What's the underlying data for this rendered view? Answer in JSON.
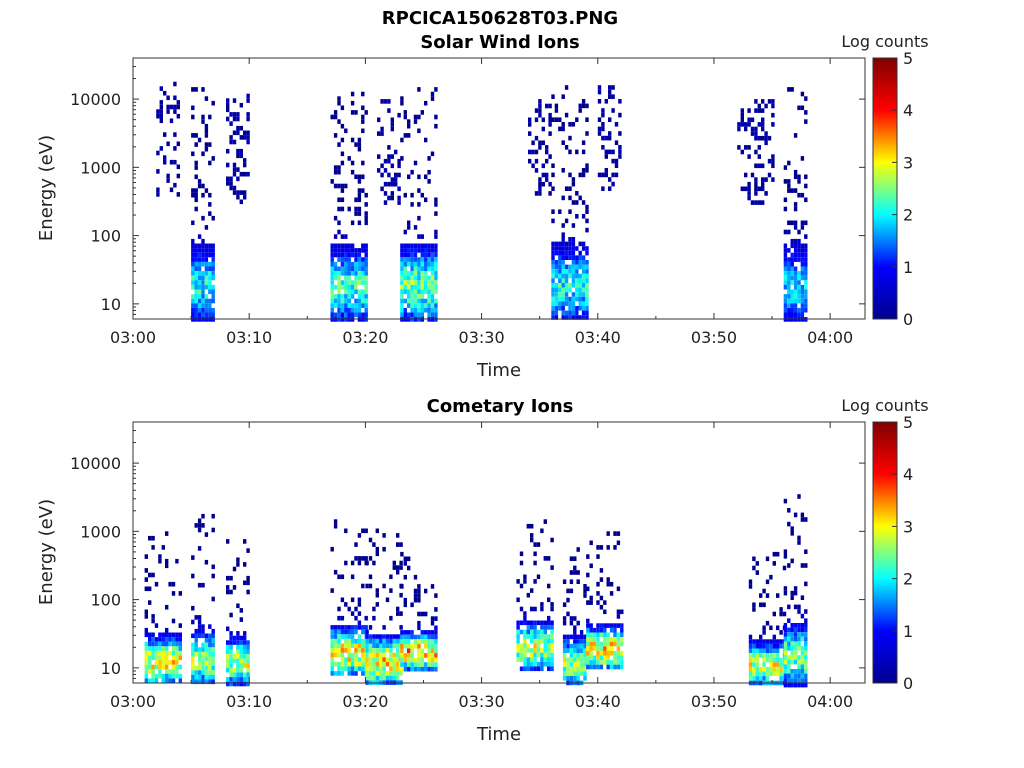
{
  "figure": {
    "title": "RPCICA150628T03.PNG"
  },
  "colormap": {
    "name": "jet",
    "stops": [
      "#00008f",
      "#0000ff",
      "#00ffff",
      "#ffff00",
      "#ff0000",
      "#800000"
    ]
  },
  "chart_data": [
    {
      "type": "heatmap",
      "title": "Solar Wind Ions",
      "xlabel": "Time",
      "ylabel": "Energy (eV)",
      "yscale": "log",
      "ylim": [
        6,
        40000
      ],
      "xlim": [
        "03:00",
        "04:03"
      ],
      "x_ticks": [
        "03:00",
        "03:10",
        "03:20",
        "03:30",
        "03:40",
        "03:50",
        "04:00"
      ],
      "y_ticks": [
        "10",
        "100",
        "1000",
        "10000"
      ],
      "colorbar": {
        "label": "Log counts",
        "min": 0,
        "max": 5,
        "ticks": [
          "0",
          "1",
          "2",
          "3",
          "4",
          "5"
        ]
      },
      "bursts": [
        {
          "t_start": "03:02",
          "t_end": "03:04",
          "e_low": 400,
          "e_high": 18000,
          "peak_log_counts": 0.3
        },
        {
          "t_start": "03:05",
          "t_end": "03:07",
          "e_low": 6,
          "e_high": 15000,
          "peak_log_counts": 2.5
        },
        {
          "t_start": "03:08",
          "t_end": "03:10",
          "e_low": 300,
          "e_high": 12000,
          "peak_log_counts": 0.3
        },
        {
          "t_start": "03:17",
          "t_end": "03:20",
          "e_low": 6,
          "e_high": 15000,
          "peak_log_counts": 2.7
        },
        {
          "t_start": "03:21",
          "t_end": "03:23",
          "e_low": 300,
          "e_high": 10000,
          "peak_log_counts": 0.3
        },
        {
          "t_start": "03:23",
          "t_end": "03:26",
          "e_low": 6,
          "e_high": 15000,
          "peak_log_counts": 3.0
        },
        {
          "t_start": "03:34",
          "t_end": "03:36",
          "e_low": 400,
          "e_high": 10000,
          "peak_log_counts": 0.3
        },
        {
          "t_start": "03:36",
          "t_end": "03:39",
          "e_low": 6,
          "e_high": 16000,
          "peak_log_counts": 2.5
        },
        {
          "t_start": "03:40",
          "t_end": "03:42",
          "e_low": 500,
          "e_high": 16000,
          "peak_log_counts": 0.3
        },
        {
          "t_start": "03:52",
          "t_end": "03:55",
          "e_low": 300,
          "e_high": 10000,
          "peak_log_counts": 0.3
        },
        {
          "t_start": "03:56",
          "t_end": "03:58",
          "e_low": 6,
          "e_high": 15000,
          "peak_log_counts": 2.3
        }
      ]
    },
    {
      "type": "heatmap",
      "title": "Cometary Ions",
      "xlabel": "Time",
      "ylabel": "Energy (eV)",
      "yscale": "log",
      "ylim": [
        6,
        40000
      ],
      "xlim": [
        "03:00",
        "04:03"
      ],
      "x_ticks": [
        "03:00",
        "03:10",
        "03:20",
        "03:30",
        "03:40",
        "03:50",
        "04:00"
      ],
      "y_ticks": [
        "10",
        "100",
        "1000",
        "10000"
      ],
      "colorbar": {
        "label": "Log counts",
        "min": 0,
        "max": 5,
        "ticks": [
          "0",
          "1",
          "2",
          "3",
          "4",
          "5"
        ]
      },
      "bursts": [
        {
          "t_start": "03:01",
          "t_end": "03:04",
          "e_low": 6,
          "e_high": 1000,
          "peak_log_counts": 3.6
        },
        {
          "t_start": "03:05",
          "t_end": "03:07",
          "e_low": 6,
          "e_high": 1800,
          "peak_log_counts": 3.2
        },
        {
          "t_start": "03:08",
          "t_end": "03:10",
          "e_low": 6,
          "e_high": 900,
          "peak_log_counts": 3.3
        },
        {
          "t_start": "03:17",
          "t_end": "03:20",
          "e_low": 8,
          "e_high": 1500,
          "peak_log_counts": 3.7
        },
        {
          "t_start": "03:20",
          "t_end": "03:23",
          "e_low": 6,
          "e_high": 1100,
          "peak_log_counts": 3.8
        },
        {
          "t_start": "03:23",
          "t_end": "03:26",
          "e_low": 10,
          "e_high": 500,
          "peak_log_counts": 4.0
        },
        {
          "t_start": "03:33",
          "t_end": "03:36",
          "e_low": 10,
          "e_high": 1500,
          "peak_log_counts": 3.4
        },
        {
          "t_start": "03:37",
          "t_end": "03:39",
          "e_low": 6,
          "e_high": 800,
          "peak_log_counts": 3.3
        },
        {
          "t_start": "03:39",
          "t_end": "03:42",
          "e_low": 10,
          "e_high": 1000,
          "peak_log_counts": 3.8
        },
        {
          "t_start": "03:53",
          "t_end": "03:56",
          "e_low": 6,
          "e_high": 500,
          "peak_log_counts": 3.5
        },
        {
          "t_start": "03:56",
          "t_end": "03:58",
          "e_low": 6,
          "e_high": 3500,
          "peak_log_counts": 3.1
        }
      ]
    }
  ]
}
